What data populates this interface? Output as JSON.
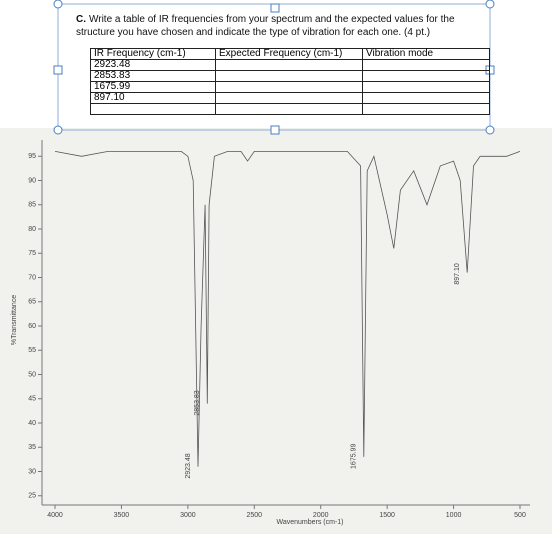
{
  "question": {
    "label": "C.",
    "text": "Write a table of IR frequencies from your spectrum and the expected values for the structure you have chosen and indicate the type of vibration for each one. (4 pt.)"
  },
  "table": {
    "header": [
      "IR Frequency (cm-1)",
      "Expected Frequency (cm-1)",
      "Vibration mode"
    ],
    "rows": [
      [
        "2923.48",
        "",
        ""
      ],
      [
        "2853.83",
        "",
        ""
      ],
      [
        "1675.99",
        "",
        ""
      ],
      [
        "897.10",
        "",
        ""
      ],
      [
        "",
        "",
        ""
      ]
    ]
  },
  "chart_data": {
    "type": "line",
    "x_label": "Wavenumbers (cm-1)",
    "y_label": "%Transmittance",
    "x": [
      4000,
      3800,
      3600,
      3400,
      3200,
      3050,
      3000,
      2960,
      2923.48,
      2900,
      2870,
      2853.83,
      2840,
      2800,
      2700,
      2600,
      2550,
      2500,
      2300,
      2000,
      1800,
      1700,
      1675.99,
      1650,
      1600,
      1500,
      1450,
      1400,
      1300,
      1200,
      1100,
      1000,
      950,
      897.1,
      850,
      800,
      700,
      600,
      500
    ],
    "values": [
      96,
      95,
      96,
      96,
      96,
      96,
      95,
      90,
      31,
      60,
      85,
      44,
      85,
      95,
      96,
      96,
      94,
      96,
      96,
      96,
      96,
      93,
      33,
      92,
      95,
      83,
      76,
      88,
      92,
      85,
      93,
      94,
      90,
      71,
      93,
      95,
      95,
      95,
      96
    ],
    "color": "#555555",
    "xlim": [
      4000,
      500
    ],
    "ylim": [
      20,
      100
    ],
    "xticks": [
      4000,
      3500,
      3000,
      2500,
      2000,
      1500,
      1000,
      500
    ],
    "yticks": [
      95,
      90,
      85,
      80,
      75,
      70,
      65,
      60,
      55,
      50,
      45,
      40,
      35,
      30,
      25
    ],
    "annotations": [
      {
        "text": "2923.48",
        "x": 2923.48
      },
      {
        "text": "2853.83",
        "x": 2853.83
      },
      {
        "text": "1675.99",
        "x": 1675.99
      },
      {
        "text": "897.10",
        "x": 897.1
      }
    ]
  }
}
